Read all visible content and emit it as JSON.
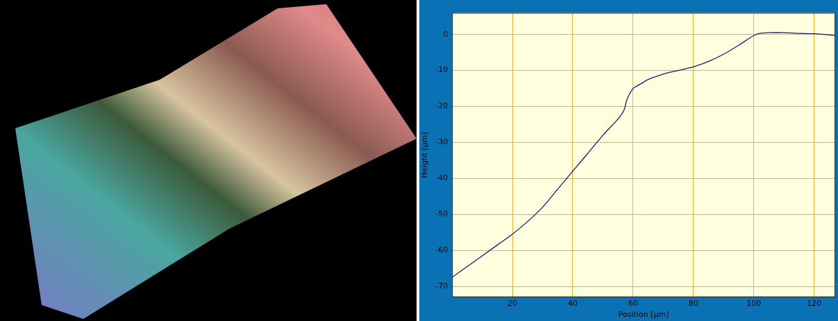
{
  "chart_data": {
    "type": "line",
    "x_label": "Position [µm]",
    "y_label": "Height [µm]",
    "x": [
      0,
      5,
      10,
      15,
      20,
      25,
      30,
      35,
      40,
      45,
      50,
      55,
      57,
      58,
      60,
      62,
      65,
      70,
      75,
      80,
      85,
      90,
      95,
      100,
      102,
      105,
      110,
      115,
      120,
      127
    ],
    "values": [
      -67.5,
      -64.5,
      -61.5,
      -58.5,
      -55.5,
      -52,
      -48,
      -43,
      -38,
      -33,
      -28,
      -23.5,
      -21,
      -18,
      -15,
      -14,
      -12.5,
      -11,
      -10,
      -9,
      -7.5,
      -5.5,
      -3,
      -0.3,
      0.3,
      0.5,
      0.5,
      0.3,
      0.2,
      -0.3
    ],
    "color": "#1a1a6e",
    "xlim": [
      0,
      127
    ],
    "xticks": [
      20,
      40,
      60,
      80,
      100,
      120
    ],
    "ylim": [
      -73,
      6
    ],
    "yticks": [
      -70,
      -60,
      -50,
      -40,
      -30,
      -20,
      -10,
      0
    ],
    "grid": true
  }
}
